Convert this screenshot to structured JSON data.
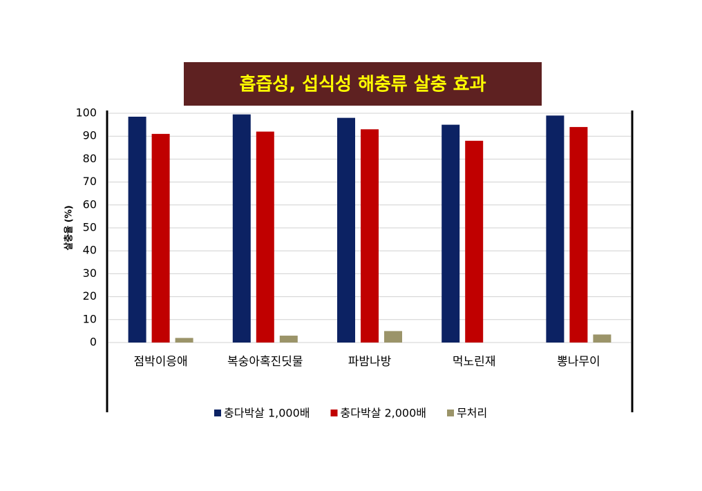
{
  "chart_data": {
    "type": "bar",
    "title": "흡즙성, 섭식성 해충류 살충 효과",
    "y_label": "살충율 (%)",
    "categories": [
      "점박이응애",
      "복숭아혹진딧물",
      "파밤나방",
      "먹노린재",
      "뽕나무이"
    ],
    "series": [
      {
        "name": "충다박살 1,000배",
        "color": "#0c2263",
        "values": [
          98.5,
          99.5,
          98,
          95,
          99
        ]
      },
      {
        "name": "충다박살 2,000배",
        "color": "#c00000",
        "values": [
          91,
          92,
          93,
          88,
          94
        ]
      },
      {
        "name": "무처리",
        "color": "#9b9469",
        "values": [
          2,
          3,
          5,
          0,
          3.5
        ]
      }
    ],
    "ylim": [
      0,
      100
    ],
    "yticks": [
      0,
      10,
      20,
      30,
      40,
      50,
      60,
      70,
      80,
      90,
      100
    ],
    "grid": true,
    "legend": "bottom"
  }
}
